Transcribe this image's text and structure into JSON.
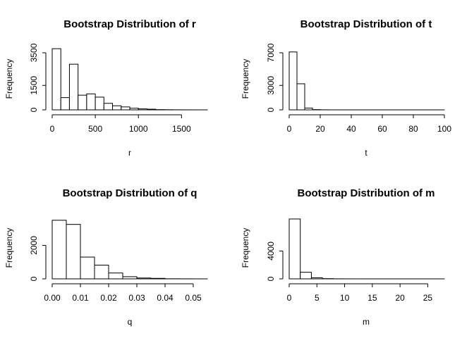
{
  "chart_data": [
    {
      "type": "bar",
      "title": "Bootstrap Distribution of r",
      "xlabel": "r",
      "ylabel": "Frequency",
      "x_ticks": [
        0,
        500,
        1000,
        1500
      ],
      "x_tick_labels": [
        "0",
        "500",
        "1000",
        "1500"
      ],
      "y_ticks": [
        0,
        1500,
        3500
      ],
      "y_tick_labels": [
        "0",
        "1500",
        "3500"
      ],
      "xlim": [
        0,
        1800
      ],
      "ylim": [
        0,
        3800
      ],
      "bins": [
        {
          "x0": 0,
          "x1": 100,
          "count": 3750
        },
        {
          "x0": 100,
          "x1": 200,
          "count": 750
        },
        {
          "x0": 200,
          "x1": 300,
          "count": 2800
        },
        {
          "x0": 300,
          "x1": 400,
          "count": 900
        },
        {
          "x0": 400,
          "x1": 500,
          "count": 980
        },
        {
          "x0": 500,
          "x1": 600,
          "count": 780
        },
        {
          "x0": 600,
          "x1": 700,
          "count": 400
        },
        {
          "x0": 700,
          "x1": 800,
          "count": 250
        },
        {
          "x0": 800,
          "x1": 900,
          "count": 180
        },
        {
          "x0": 900,
          "x1": 1000,
          "count": 100
        },
        {
          "x0": 1000,
          "x1": 1100,
          "count": 60
        },
        {
          "x0": 1100,
          "x1": 1200,
          "count": 40
        },
        {
          "x0": 1200,
          "x1": 1300,
          "count": 15
        },
        {
          "x0": 1300,
          "x1": 1400,
          "count": 8
        },
        {
          "x0": 1400,
          "x1": 1500,
          "count": 4
        },
        {
          "x0": 1500,
          "x1": 1600,
          "count": 2
        },
        {
          "x0": 1600,
          "x1": 1700,
          "count": 1
        },
        {
          "x0": 1700,
          "x1": 1800,
          "count": 1
        }
      ]
    },
    {
      "type": "bar",
      "title": "Bootstrap Distribution of t",
      "xlabel": "t",
      "ylabel": "Frequency",
      "x_ticks": [
        0,
        20,
        40,
        60,
        80,
        100
      ],
      "x_tick_labels": [
        "0",
        "20",
        "40",
        "60",
        "80",
        "100"
      ],
      "y_ticks": [
        0,
        3000,
        7000
      ],
      "y_tick_labels": [
        "0",
        "3000",
        "7000"
      ],
      "xlim": [
        0,
        100
      ],
      "ylim": [
        0,
        7600
      ],
      "bins": [
        {
          "x0": 0,
          "x1": 5,
          "count": 7100
        },
        {
          "x0": 5,
          "x1": 10,
          "count": 3200
        },
        {
          "x0": 10,
          "x1": 15,
          "count": 220
        },
        {
          "x0": 15,
          "x1": 20,
          "count": 30
        },
        {
          "x0": 20,
          "x1": 25,
          "count": 8
        },
        {
          "x0": 25,
          "x1": 30,
          "count": 3
        },
        {
          "x0": 30,
          "x1": 35,
          "count": 2
        },
        {
          "x0": 35,
          "x1": 40,
          "count": 1
        },
        {
          "x0": 40,
          "x1": 45,
          "count": 1
        },
        {
          "x0": 45,
          "x1": 50,
          "count": 1
        },
        {
          "x0": 50,
          "x1": 55,
          "count": 1
        },
        {
          "x0": 55,
          "x1": 60,
          "count": 1
        },
        {
          "x0": 60,
          "x1": 65,
          "count": 1
        },
        {
          "x0": 65,
          "x1": 70,
          "count": 1
        },
        {
          "x0": 70,
          "x1": 75,
          "count": 1
        },
        {
          "x0": 75,
          "x1": 80,
          "count": 1
        },
        {
          "x0": 80,
          "x1": 85,
          "count": 1
        },
        {
          "x0": 85,
          "x1": 90,
          "count": 1
        },
        {
          "x0": 90,
          "x1": 95,
          "count": 1
        },
        {
          "x0": 95,
          "x1": 100,
          "count": 1
        }
      ]
    },
    {
      "type": "bar",
      "title": "Bootstrap Distribution of q",
      "xlabel": "q",
      "ylabel": "Frequency",
      "x_ticks": [
        0,
        0.01,
        0.02,
        0.03,
        0.04,
        0.05
      ],
      "x_tick_labels": [
        "0.00",
        "0.01",
        "0.02",
        "0.03",
        "0.04",
        "0.05"
      ],
      "y_ticks": [
        0,
        2000
      ],
      "y_tick_labels": [
        "0",
        "2000"
      ],
      "xlim": [
        0,
        0.055
      ],
      "ylim": [
        0,
        3700
      ],
      "bins": [
        {
          "x0": 0,
          "x1": 0.005,
          "count": 3500
        },
        {
          "x0": 0.005,
          "x1": 0.01,
          "count": 3250
        },
        {
          "x0": 0.01,
          "x1": 0.015,
          "count": 1300
        },
        {
          "x0": 0.015,
          "x1": 0.02,
          "count": 820
        },
        {
          "x0": 0.02,
          "x1": 0.025,
          "count": 350
        },
        {
          "x0": 0.025,
          "x1": 0.03,
          "count": 130
        },
        {
          "x0": 0.03,
          "x1": 0.035,
          "count": 50
        },
        {
          "x0": 0.035,
          "x1": 0.04,
          "count": 30
        },
        {
          "x0": 0.04,
          "x1": 0.045,
          "count": 6
        },
        {
          "x0": 0.045,
          "x1": 0.05,
          "count": 3
        },
        {
          "x0": 0.05,
          "x1": 0.055,
          "count": 1
        }
      ]
    },
    {
      "type": "bar",
      "title": "Bootstrap Distribution of m",
      "xlabel": "m",
      "ylabel": "Frequency",
      "x_ticks": [
        0,
        5,
        10,
        15,
        20,
        25
      ],
      "x_tick_labels": [
        "0",
        "5",
        "10",
        "15",
        "20",
        "25"
      ],
      "y_ticks": [
        0,
        4000
      ],
      "y_tick_labels": [
        "0",
        "4000"
      ],
      "xlim": [
        0,
        28
      ],
      "ylim": [
        0,
        8900
      ],
      "bins": [
        {
          "x0": 0,
          "x1": 2,
          "count": 8600
        },
        {
          "x0": 2,
          "x1": 4,
          "count": 950
        },
        {
          "x0": 4,
          "x1": 6,
          "count": 160
        },
        {
          "x0": 6,
          "x1": 8,
          "count": 30
        },
        {
          "x0": 8,
          "x1": 10,
          "count": 8
        },
        {
          "x0": 10,
          "x1": 12,
          "count": 3
        },
        {
          "x0": 12,
          "x1": 14,
          "count": 2
        },
        {
          "x0": 14,
          "x1": 16,
          "count": 1
        },
        {
          "x0": 16,
          "x1": 18,
          "count": 1
        },
        {
          "x0": 18,
          "x1": 20,
          "count": 1
        },
        {
          "x0": 20,
          "x1": 22,
          "count": 1
        },
        {
          "x0": 22,
          "x1": 24,
          "count": 1
        },
        {
          "x0": 24,
          "x1": 26,
          "count": 1
        },
        {
          "x0": 26,
          "x1": 28,
          "count": 1
        }
      ]
    }
  ]
}
